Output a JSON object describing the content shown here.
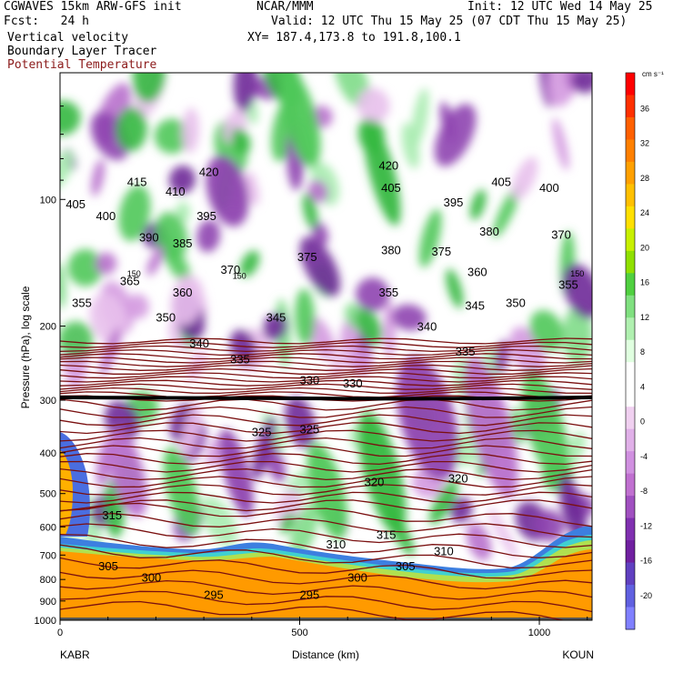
{
  "header": {
    "model": "CGWAVES 15km ARW-GFS init",
    "fcst": "Fcst:   24 h",
    "center": "NCAR/MMM",
    "init": "Init: 12 UTC Wed 14 May 25",
    "valid": "Valid: 12 UTC Thu 15 May 25 (07 CDT Thu 15 May 25)",
    "xy": "XY= 187.4,173.8 to 191.8,100.1",
    "field1": "Vertical velocity",
    "field2": "Boundary Layer Tracer",
    "field3": "Potential Temperature"
  },
  "chart_data": {
    "type": "heatmap",
    "xlabel": "Distance (km)",
    "ylabel": "Pressure (hPa), log scale",
    "x_ticks": [
      0,
      500,
      1000
    ],
    "xlim": [
      0,
      1110
    ],
    "y_ticks": [
      100,
      200,
      300,
      400,
      500,
      600,
      700,
      800,
      900,
      1000
    ],
    "y_scale": "log",
    "left_endpoint": "KABR",
    "right_endpoint": "KOUN",
    "colorbar": {
      "unit": "cm s⁻¹",
      "labels": [
        36,
        32,
        28,
        24,
        20,
        16,
        12,
        8,
        4,
        0,
        -4,
        -8,
        -12,
        -16,
        -20
      ],
      "colors": [
        "#ff0000",
        "#ff3000",
        "#ff6000",
        "#ff8000",
        "#ffa000",
        "#ffc000",
        "#ffe000",
        "#c8f000",
        "#90e000",
        "#50d040",
        "#80e080",
        "#b0f0b0",
        "#e0ffe0",
        "#ffffff",
        "#ffffff",
        "#f0d0f0",
        "#e0b0e8",
        "#d090e0",
        "#c070d0",
        "#a050c0",
        "#8030b0",
        "#7020a0",
        "#6040c0",
        "#6060e0",
        "#8080ff"
      ]
    },
    "theta_labels": [
      {
        "v": 420,
        "x": 665,
        "p": 85
      },
      {
        "v": 420,
        "x": 290,
        "p": 88
      },
      {
        "v": 415,
        "x": 140,
        "p": 93
      },
      {
        "v": 410,
        "x": 220,
        "p": 98
      },
      {
        "v": 405,
        "x": 12,
        "p": 105
      },
      {
        "v": 405,
        "x": 670,
        "p": 96
      },
      {
        "v": 405,
        "x": 900,
        "p": 93
      },
      {
        "v": 400,
        "x": 1000,
        "p": 96
      },
      {
        "v": 400,
        "x": 75,
        "p": 112
      },
      {
        "v": 395,
        "x": 285,
        "p": 112
      },
      {
        "v": 395,
        "x": 800,
        "p": 104
      },
      {
        "v": 390,
        "x": 165,
        "p": 126
      },
      {
        "v": 385,
        "x": 235,
        "p": 130
      },
      {
        "v": 380,
        "x": 670,
        "p": 135
      },
      {
        "v": 380,
        "x": 875,
        "p": 122
      },
      {
        "v": 375,
        "x": 495,
        "p": 140
      },
      {
        "v": 375,
        "x": 775,
        "p": 136
      },
      {
        "v": 370,
        "x": 335,
        "p": 150
      },
      {
        "v": 370,
        "x": 1025,
        "p": 124
      },
      {
        "v": 365,
        "x": 125,
        "p": 160
      },
      {
        "v": 360,
        "x": 235,
        "p": 170
      },
      {
        "v": 360,
        "x": 850,
        "p": 152
      },
      {
        "v": 355,
        "x": 25,
        "p": 180
      },
      {
        "v": 355,
        "x": 665,
        "p": 170
      },
      {
        "v": 355,
        "x": 1040,
        "p": 163
      },
      {
        "v": 350,
        "x": 200,
        "p": 195
      },
      {
        "v": 350,
        "x": 930,
        "p": 180
      },
      {
        "v": 345,
        "x": 430,
        "p": 195
      },
      {
        "v": 345,
        "x": 845,
        "p": 183
      },
      {
        "v": 340,
        "x": 270,
        "p": 225
      },
      {
        "v": 340,
        "x": 745,
        "p": 205
      },
      {
        "v": 335,
        "x": 355,
        "p": 245
      },
      {
        "v": 335,
        "x": 825,
        "p": 235
      },
      {
        "v": 330,
        "x": 500,
        "p": 275
      },
      {
        "v": 330,
        "x": 590,
        "p": 280
      },
      {
        "v": 325,
        "x": 400,
        "p": 365
      },
      {
        "v": 325,
        "x": 500,
        "p": 360
      },
      {
        "v": 320,
        "x": 635,
        "p": 480
      },
      {
        "v": 320,
        "x": 810,
        "p": 470
      },
      {
        "v": 315,
        "x": 88,
        "p": 575
      },
      {
        "v": 315,
        "x": 660,
        "p": 640
      },
      {
        "v": 310,
        "x": 555,
        "p": 675
      },
      {
        "v": 310,
        "x": 780,
        "p": 700
      },
      {
        "v": 305,
        "x": 80,
        "p": 760
      },
      {
        "v": 305,
        "x": 700,
        "p": 760
      },
      {
        "v": 300,
        "x": 170,
        "p": 810
      },
      {
        "v": 300,
        "x": 600,
        "p": 810
      },
      {
        "v": 295,
        "x": 300,
        "p": 890
      },
      {
        "v": 295,
        "x": 500,
        "p": 890
      }
    ],
    "tropopause_labels": [
      {
        "v": 150,
        "x": 140,
        "p": 150
      },
      {
        "v": 150,
        "x": 360,
        "p": 152
      },
      {
        "v": 150,
        "x": 1065,
        "p": 150
      }
    ]
  }
}
